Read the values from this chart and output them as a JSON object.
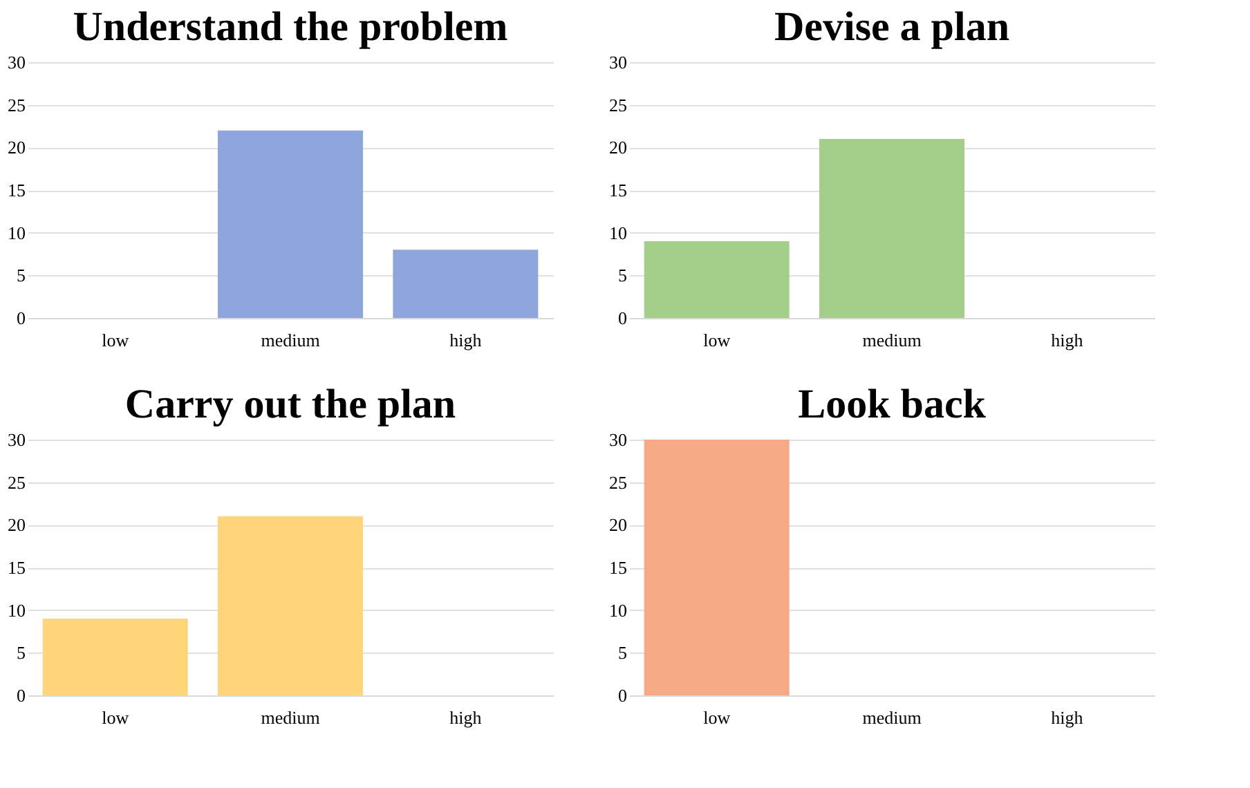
{
  "chart_data": [
    {
      "type": "bar",
      "title": "Understand the problem",
      "categories": [
        "low",
        "medium",
        "high"
      ],
      "values": [
        0,
        22,
        8
      ],
      "color": "#8fa6dc",
      "ylim": [
        0,
        30
      ],
      "yticks": [
        0,
        5,
        10,
        15,
        20,
        25,
        30
      ],
      "grid": "y"
    },
    {
      "type": "bar",
      "title": "Devise a plan",
      "categories": [
        "low",
        "medium",
        "high"
      ],
      "values": [
        9,
        21,
        0
      ],
      "color": "#a3cf8a",
      "ylim": [
        0,
        30
      ],
      "yticks": [
        0,
        5,
        10,
        15,
        20,
        25,
        30
      ],
      "grid": "y"
    },
    {
      "type": "bar",
      "title": "Carry out the plan",
      "categories": [
        "low",
        "medium",
        "high"
      ],
      "values": [
        9,
        21,
        0
      ],
      "color": "#ffd57a",
      "ylim": [
        0,
        30
      ],
      "yticks": [
        0,
        5,
        10,
        15,
        20,
        25,
        30
      ],
      "grid": "y"
    },
    {
      "type": "bar",
      "title": "Look back",
      "categories": [
        "low",
        "medium",
        "high"
      ],
      "values": [
        30,
        0,
        0
      ],
      "color": "#f5a985",
      "ylim": [
        0,
        30
      ],
      "yticks": [
        0,
        5,
        10,
        15,
        20,
        25,
        30
      ],
      "grid": "y"
    }
  ]
}
